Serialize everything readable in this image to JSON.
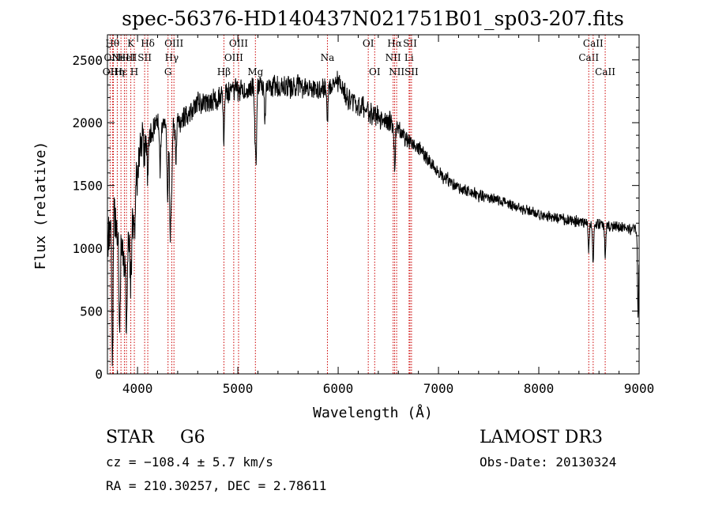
{
  "chart_data": {
    "type": "line",
    "title": "spec-56376-HD140437N021751B01_sp03-207.fits",
    "xlabel": "Wavelength (Å)",
    "ylabel": "Flux (relative)",
    "xlim": [
      3700,
      9000
    ],
    "ylim": [
      0,
      2700
    ],
    "xticks": [
      4000,
      5000,
      6000,
      7000,
      8000,
      9000
    ],
    "yticks": [
      0,
      500,
      1000,
      1500,
      2000,
      2500
    ],
    "line_color": "#000000",
    "marker_color": "#cc0000",
    "continuum": {
      "wavelength": [
        3700,
        3750,
        3800,
        3850,
        3900,
        3950,
        4000,
        4050,
        4100,
        4200,
        4300,
        4400,
        4500,
        4600,
        4700,
        4800,
        4900,
        5000,
        5100,
        5200,
        5300,
        5400,
        5500,
        5600,
        5700,
        5800,
        5900,
        6000,
        6100,
        6200,
        6300,
        6400,
        6500,
        6600,
        6700,
        6800,
        6900,
        7000,
        7200,
        7400,
        7600,
        7800,
        8000,
        8200,
        8400,
        8600,
        8800,
        9000
      ],
      "flux": [
        1050,
        1300,
        1150,
        900,
        1000,
        1200,
        1650,
        1850,
        1850,
        2000,
        1950,
        2000,
        2050,
        2150,
        2150,
        2200,
        2250,
        2250,
        2250,
        2300,
        2280,
        2280,
        2280,
        2300,
        2280,
        2250,
        2300,
        2350,
        2200,
        2150,
        2100,
        2050,
        2000,
        1950,
        1850,
        1800,
        1700,
        1600,
        1480,
        1420,
        1380,
        1320,
        1270,
        1240,
        1210,
        1190,
        1170,
        1150
      ]
    },
    "features": [
      {
        "wavelength": 3750,
        "depth": 1300
      },
      {
        "wavelength": 3820,
        "depth": 700
      },
      {
        "wavelength": 3890,
        "depth": 600
      },
      {
        "wavelength": 3933,
        "depth": 400
      },
      {
        "wavelength": 3968,
        "depth": 300
      },
      {
        "wavelength": 4101,
        "depth": 300
      },
      {
        "wavelength": 4226,
        "depth": 350
      },
      {
        "wavelength": 4300,
        "depth": 600
      },
      {
        "wavelength": 4325,
        "depth": 850
      },
      {
        "wavelength": 4340,
        "depth": 500
      },
      {
        "wavelength": 4383,
        "depth": 300
      },
      {
        "wavelength": 4861,
        "depth": 350
      },
      {
        "wavelength": 5170,
        "depth": 300
      },
      {
        "wavelength": 5183,
        "depth": 550
      },
      {
        "wavelength": 5270,
        "depth": 250
      },
      {
        "wavelength": 5893,
        "depth": 300
      },
      {
        "wavelength": 6563,
        "depth": 300
      },
      {
        "wavelength": 8498,
        "depth": 200
      },
      {
        "wavelength": 8542,
        "depth": 300
      },
      {
        "wavelength": 8662,
        "depth": 250
      },
      {
        "wavelength": 8990,
        "depth": 700
      }
    ],
    "noise_scale": [
      {
        "from": 3700,
        "to": 4100,
        "amp": 220
      },
      {
        "from": 4100,
        "to": 6600,
        "amp": 110
      },
      {
        "from": 6600,
        "to": 7100,
        "amp": 75
      },
      {
        "from": 7100,
        "to": 9000,
        "amp": 55
      }
    ],
    "line_markers": [
      {
        "wavelength": 3727,
        "label": "OII",
        "row": 2
      },
      {
        "wavelength": 3750,
        "label": "Hθ",
        "row": 0
      },
      {
        "wavelength": 3759,
        "label": "OIII",
        "row": 1
      },
      {
        "wavelength": 3798,
        "label": "Hη",
        "row": 2
      },
      {
        "wavelength": 3835,
        "label": "Hε",
        "row": 2
      },
      {
        "wavelength": 3869,
        "label": "NeIII",
        "row": 1
      },
      {
        "wavelength": 3889,
        "label": "HeI",
        "row": 1
      },
      {
        "wavelength": 3933,
        "label": "K",
        "row": 0
      },
      {
        "wavelength": 3968,
        "label": "H",
        "row": 2
      },
      {
        "wavelength": 4071,
        "label": "SII",
        "row": 1
      },
      {
        "wavelength": 4102,
        "label": "Hδ",
        "row": 0
      },
      {
        "wavelength": 4304,
        "label": "G",
        "row": 2
      },
      {
        "wavelength": 4341,
        "label": "Hγ",
        "row": 1
      },
      {
        "wavelength": 4363,
        "label": "OIII",
        "row": 0
      },
      {
        "wavelength": 4861,
        "label": "Hβ",
        "row": 2
      },
      {
        "wavelength": 4959,
        "label": "OIII",
        "row": 1
      },
      {
        "wavelength": 5007,
        "label": "OIII",
        "row": 0
      },
      {
        "wavelength": 5175,
        "label": "Mg",
        "row": 2
      },
      {
        "wavelength": 5893,
        "label": "Na",
        "row": 1
      },
      {
        "wavelength": 6300,
        "label": "OI",
        "row": 0
      },
      {
        "wavelength": 6364,
        "label": "OI",
        "row": 2
      },
      {
        "wavelength": 6548,
        "label": "NII",
        "row": 1
      },
      {
        "wavelength": 6563,
        "label": "Hα",
        "row": 0
      },
      {
        "wavelength": 6583,
        "label": "NII",
        "row": 2
      },
      {
        "wavelength": 6707,
        "label": "Li",
        "row": 1
      },
      {
        "wavelength": 6716,
        "label": "SII",
        "row": 0
      },
      {
        "wavelength": 6731,
        "label": "SII",
        "row": 2
      },
      {
        "wavelength": 8498,
        "label": "CaII",
        "row": 1
      },
      {
        "wavelength": 8542,
        "label": "CaII",
        "row": 0
      },
      {
        "wavelength": 8662,
        "label": "CaII",
        "row": 2
      }
    ]
  },
  "info": {
    "object_type": "STAR",
    "subclass": "G6",
    "survey": "LAMOST DR3",
    "redshift_line": "cz = −108.4 ± 5.7 km/s",
    "obs_date": "Obs-Date: 20130324",
    "coords": "RA = 210.30257, DEC =   2.78611"
  }
}
